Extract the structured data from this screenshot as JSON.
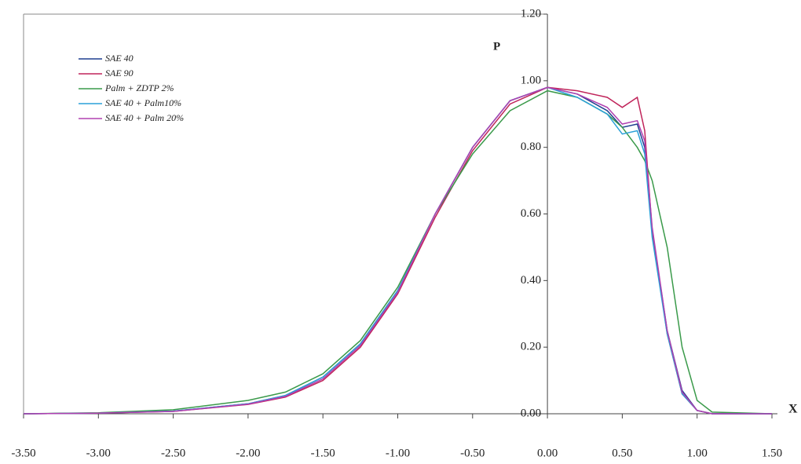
{
  "chart_data": {
    "type": "line",
    "y_label": "P",
    "x_label": "X",
    "x": [
      -3.5,
      -3.0,
      -2.5,
      -2.0,
      -1.75,
      -1.5,
      -1.25,
      -1.0,
      -0.75,
      -0.5,
      -0.25,
      0.0,
      0.2,
      0.4,
      0.5,
      0.6,
      0.65,
      0.7,
      0.8,
      0.9,
      1.0,
      1.1,
      1.5
    ],
    "series": [
      {
        "name": "SAE 40",
        "color": "#1f3f8f",
        "values": [
          0,
          0.002,
          0.008,
          0.03,
          0.055,
          0.11,
          0.21,
          0.37,
          0.6,
          0.8,
          0.94,
          0.98,
          0.96,
          0.91,
          0.86,
          0.87,
          0.8,
          0.55,
          0.25,
          0.07,
          0.01,
          0,
          0
        ]
      },
      {
        "name": "SAE 90",
        "color": "#c0245a",
        "values": [
          0,
          0.002,
          0.007,
          0.028,
          0.05,
          0.1,
          0.2,
          0.36,
          0.59,
          0.79,
          0.93,
          0.98,
          0.97,
          0.95,
          0.92,
          0.95,
          0.85,
          0.55,
          0.24,
          0.06,
          0.01,
          0,
          0
        ]
      },
      {
        "name": "Palm + ZDTP 2%",
        "color": "#3a9a4a",
        "values": [
          0,
          0.003,
          0.012,
          0.04,
          0.065,
          0.12,
          0.22,
          0.38,
          0.6,
          0.78,
          0.91,
          0.97,
          0.95,
          0.9,
          0.86,
          0.8,
          0.76,
          0.7,
          0.5,
          0.2,
          0.04,
          0.005,
          0
        ]
      },
      {
        "name": "SAE 40 + Palm10%",
        "color": "#2aa0d8",
        "values": [
          0,
          0.002,
          0.008,
          0.03,
          0.055,
          0.11,
          0.21,
          0.37,
          0.6,
          0.8,
          0.94,
          0.98,
          0.95,
          0.9,
          0.84,
          0.85,
          0.78,
          0.53,
          0.24,
          0.06,
          0.01,
          0,
          0
        ]
      },
      {
        "name": "SAE 40 + Palm 20%",
        "color": "#b040b0",
        "values": [
          0,
          0.002,
          0.007,
          0.029,
          0.052,
          0.105,
          0.205,
          0.365,
          0.6,
          0.8,
          0.94,
          0.98,
          0.96,
          0.92,
          0.87,
          0.88,
          0.82,
          0.56,
          0.25,
          0.065,
          0.01,
          0,
          0
        ]
      }
    ],
    "xlim": [
      -3.5,
      1.5
    ],
    "ylim": [
      0,
      1.2
    ],
    "xticks": [
      {
        "value": -3.5,
        "label": "-3.50"
      },
      {
        "value": -3.0,
        "label": "-3.00"
      },
      {
        "value": -2.5,
        "label": "-2.50"
      },
      {
        "value": -2.0,
        "label": "-2.00"
      },
      {
        "value": -1.5,
        "label": "-1.50"
      },
      {
        "value": -1.0,
        "label": "-1.00"
      },
      {
        "value": -0.5,
        "label": "-0.50"
      },
      {
        "value": 0,
        "label": "0.00"
      },
      {
        "value": 0.5,
        "label": "0.50"
      },
      {
        "value": 1.0,
        "label": "1.00"
      },
      {
        "value": 1.5,
        "label": "1.50"
      }
    ],
    "yticks": [
      {
        "value": 0,
        "label": "0.00"
      },
      {
        "value": 0.2,
        "label": "0.20"
      },
      {
        "value": 0.4,
        "label": "0.40"
      },
      {
        "value": 0.6,
        "label": "0.60"
      },
      {
        "value": 0.8,
        "label": "0.80"
      },
      {
        "value": 1.0,
        "label": "1.00"
      },
      {
        "value": 1.2,
        "label": "1.20"
      }
    ],
    "legend": "upper-left"
  }
}
